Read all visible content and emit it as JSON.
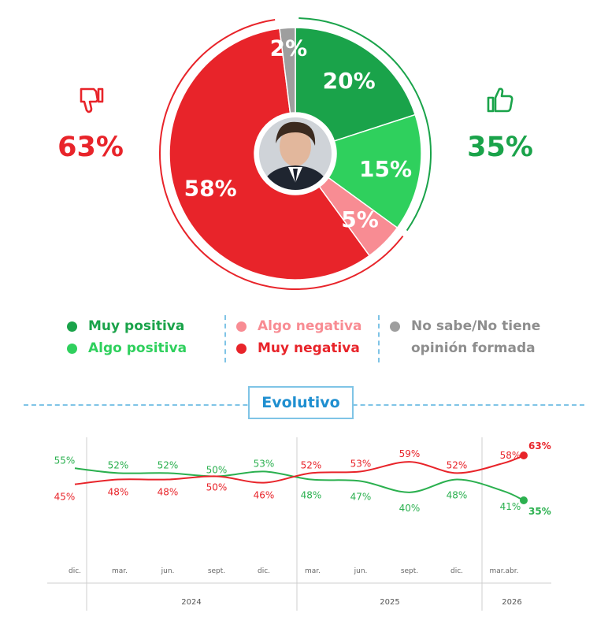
{
  "donut": {
    "slices": [
      {
        "name": "Muy positiva",
        "value": 20,
        "label": "20%",
        "color": "#1aa34a"
      },
      {
        "name": "Algo positiva",
        "value": 15,
        "label": "15%",
        "color": "#2fd05d"
      },
      {
        "name": "Algo negativa",
        "value": 5,
        "label": "5%",
        "color": "#f88c93"
      },
      {
        "name": "Muy negativa",
        "value": 58,
        "label": "58%",
        "color": "#e8242a"
      },
      {
        "name": "No sabe/No tiene opinión formada",
        "value": 2,
        "label": "2%",
        "color": "#9e9e9e"
      }
    ]
  },
  "negative": {
    "total": "63%",
    "icon": "thumbs-down-icon",
    "color": "#e8242a"
  },
  "positive": {
    "total": "35%",
    "icon": "thumbs-up-icon",
    "color": "#1aa34a"
  },
  "legend": {
    "muy_positiva": "Muy positiva",
    "algo_positiva": "Algo positiva",
    "algo_negativa": "Algo negativa",
    "muy_negativa": "Muy negativa",
    "no_sabe_line1": "No sabe/No tiene",
    "no_sabe_line2": "opinión formada"
  },
  "evolutivo": {
    "title": "Evolutivo"
  },
  "chart_data": {
    "type": "line",
    "title": "Evolutivo",
    "x": [
      "dic.",
      "mar.",
      "jun.",
      "sept.",
      "dic.",
      "mar.",
      "jun.",
      "sept.",
      "dic.",
      "mar.",
      "abr."
    ],
    "x_display": [
      "dic.",
      "mar.",
      "jun.",
      "sept.",
      "dic.",
      "mar.",
      "jun.",
      "sept.",
      "dic.",
      "mar.abr."
    ],
    "year_labels": [
      "2024",
      "2025",
      "2026"
    ],
    "series": [
      {
        "color": "#2bb04f",
        "values": [
          55,
          52,
          52,
          50,
          53,
          48,
          47,
          40,
          48,
          41,
          35
        ],
        "labels": [
          "55%",
          "52%",
          "52%",
          "50%",
          "53%",
          "48%",
          "47%",
          "40%",
          "48%",
          "41%",
          "35%"
        ]
      },
      {
        "color": "#e8242a",
        "values": [
          45,
          48,
          48,
          50,
          46,
          52,
          53,
          59,
          52,
          58,
          63
        ],
        "labels": [
          "45%",
          "48%",
          "48%",
          "50%",
          "46%",
          "52%",
          "53%",
          "59%",
          "52%",
          "58%",
          "63%"
        ]
      }
    ]
  }
}
